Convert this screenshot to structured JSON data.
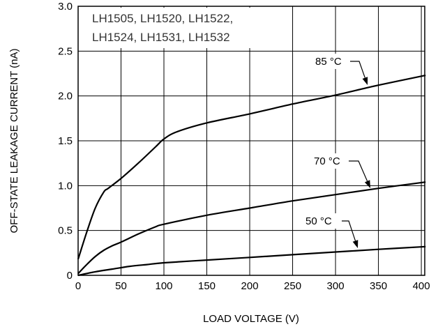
{
  "chart_data": {
    "type": "line",
    "title": "",
    "xlabel": "LOAD VOLTAGE (V)",
    "ylabel": "OFF-STATE LEAKAGE CURRENT (nA)",
    "xlim": [
      0,
      400
    ],
    "ylim": [
      0,
      3.0
    ],
    "x_ticks": [
      "0",
      "50",
      "100",
      "150",
      "200",
      "250",
      "300",
      "350",
      "400"
    ],
    "y_ticks": [
      "0",
      "0.5",
      "1.0",
      "1.5",
      "2.0",
      "2.5",
      "3.0"
    ],
    "grid": true,
    "annotation_lines": [
      "LH1505, LH1520, LH1522,",
      "LH1524, LH1531, LH1532"
    ],
    "series": [
      {
        "name": "85 °C",
        "x": [
          0,
          10,
          20,
          30,
          35,
          50,
          70,
          90,
          100,
          115,
          150,
          200,
          250,
          300,
          350,
          405
        ],
        "y": [
          0.18,
          0.48,
          0.75,
          0.93,
          0.97,
          1.08,
          1.25,
          1.43,
          1.52,
          1.6,
          1.7,
          1.8,
          1.91,
          2.01,
          2.12,
          2.23
        ]
      },
      {
        "name": "70 °C",
        "x": [
          0,
          10,
          20,
          30,
          40,
          50,
          70,
          90,
          100,
          150,
          200,
          250,
          300,
          350,
          405
        ],
        "y": [
          0.02,
          0.12,
          0.21,
          0.28,
          0.33,
          0.37,
          0.46,
          0.54,
          0.57,
          0.67,
          0.75,
          0.83,
          0.9,
          0.97,
          1.04
        ]
      },
      {
        "name": "50 °C",
        "x": [
          0,
          20,
          40,
          60,
          80,
          100,
          150,
          200,
          250,
          300,
          350,
          405
        ],
        "y": [
          0.0,
          0.04,
          0.07,
          0.1,
          0.12,
          0.14,
          0.17,
          0.2,
          0.23,
          0.26,
          0.29,
          0.32
        ]
      }
    ]
  }
}
